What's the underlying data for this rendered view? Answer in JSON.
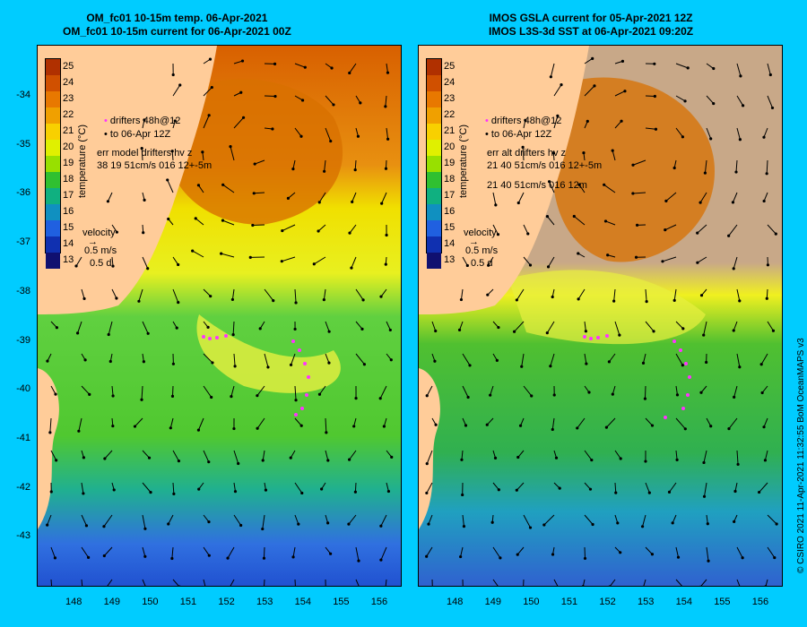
{
  "left": {
    "title1": "OM_fc01 10-15m temp. 06-Apr-2021",
    "title2": "OM_fc01 10-15m current for 06-Apr-2021 00Z",
    "legend_drifters": "drifters 48h@12",
    "legend_to": "to 06-Apr 12Z",
    "legend_err": "err model drifters hv z",
    "legend_stats": "38 19 51cm/s 016 12+-5m",
    "velocity_label": "velocity",
    "velocity_speed": "0.5 m/s",
    "velocity_time": "0.5 d"
  },
  "right": {
    "title1": "IMOS GSLA current for 05-Apr-2021 12Z",
    "title2": "IMOS L3S-3d SST at 06-Apr-2021 09:20Z",
    "legend_drifters": "drifters 48h@12",
    "legend_to": "to 06-Apr 12Z",
    "legend_err": "err alt drifters hv z",
    "legend_stats1": "21 40 51cm/s 016 12+-5m",
    "legend_stats2": "21 40 51cm/s 016 12m",
    "velocity_label": "velocity",
    "velocity_speed": "0.5 m/s",
    "velocity_time": "0.5 d"
  },
  "colorbar": {
    "unit_label": "temperature (°C)",
    "ticks": [
      "25",
      "24",
      "23",
      "22",
      "21",
      "20",
      "19",
      "18",
      "17",
      "16",
      "15",
      "14",
      "13"
    ],
    "colors": [
      "#b03000",
      "#d05000",
      "#e87800",
      "#f0a000",
      "#f8d000",
      "#e0f000",
      "#98e000",
      "#30c030",
      "#10b080",
      "#1090c0",
      "#2060e0",
      "#1030b0",
      "#101070"
    ]
  },
  "axes": {
    "x_ticks": [
      "148",
      "149",
      "150",
      "151",
      "152",
      "153",
      "154",
      "155",
      "156"
    ],
    "y_ticks": [
      "-34",
      "-35",
      "-36",
      "-37",
      "-38",
      "-39",
      "-40",
      "-41",
      "-42",
      "-43"
    ]
  },
  "colors": {
    "land": "#ffcc99",
    "land_masked": "#c8a888",
    "background": "#00ccff",
    "drifter": "#ff33ff"
  },
  "credit": "© CSIRO 2021   11-Apr-2021 11:32:55 BoM OceanMAPS v3"
}
